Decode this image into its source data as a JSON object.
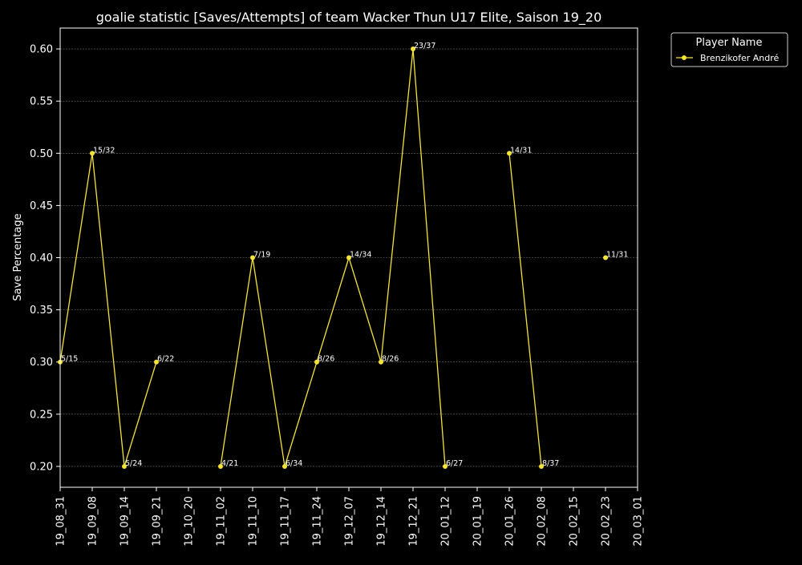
{
  "chart_data": {
    "type": "line",
    "title": "goalie statistic [Saves/Attempts] of team Wacker Thun U17 Elite, Saison 19_20",
    "xlabel": "",
    "ylabel": "Save Percentage",
    "ylim": [
      0.18,
      0.62
    ],
    "yticks": [
      "0.20",
      "0.25",
      "0.30",
      "0.35",
      "0.40",
      "0.45",
      "0.50",
      "0.55",
      "0.60"
    ],
    "ytick_values": [
      0.2,
      0.25,
      0.3,
      0.35,
      0.4,
      0.45,
      0.5,
      0.55,
      0.6
    ],
    "categories": [
      "19_08_31",
      "19_09_08",
      "19_09_14",
      "19_09_21",
      "19_10_20",
      "19_11_02",
      "19_11_10",
      "19_11_17",
      "19_11_24",
      "19_12_07",
      "19_12_14",
      "19_12_21",
      "20_01_12",
      "20_01_19",
      "20_01_26",
      "20_02_08",
      "20_02_15",
      "20_02_23",
      "20_03_01"
    ],
    "grid": true,
    "legend": {
      "title": "Player Name",
      "placement": "outside-top-right"
    },
    "colors": {
      "background": "#000000",
      "axes": "#ffffff",
      "grid": "#777777",
      "series": "#f5e33a"
    },
    "series": [
      {
        "name": "Brenzikofer André",
        "color": "#f5e33a",
        "values": [
          0.3,
          0.5,
          0.2,
          0.3,
          null,
          0.2,
          0.4,
          0.2,
          0.3,
          0.4,
          0.3,
          0.6,
          0.2,
          null,
          0.5,
          0.2,
          null,
          0.4,
          null
        ],
        "labels": [
          "5/15",
          "15/32",
          "5/24",
          "6/22",
          null,
          "4/21",
          "7/19",
          "6/34",
          "8/26",
          "14/34",
          "8/26",
          "23/37",
          "6/27",
          null,
          "14/31",
          "8/37",
          null,
          "11/31",
          null
        ]
      }
    ]
  }
}
